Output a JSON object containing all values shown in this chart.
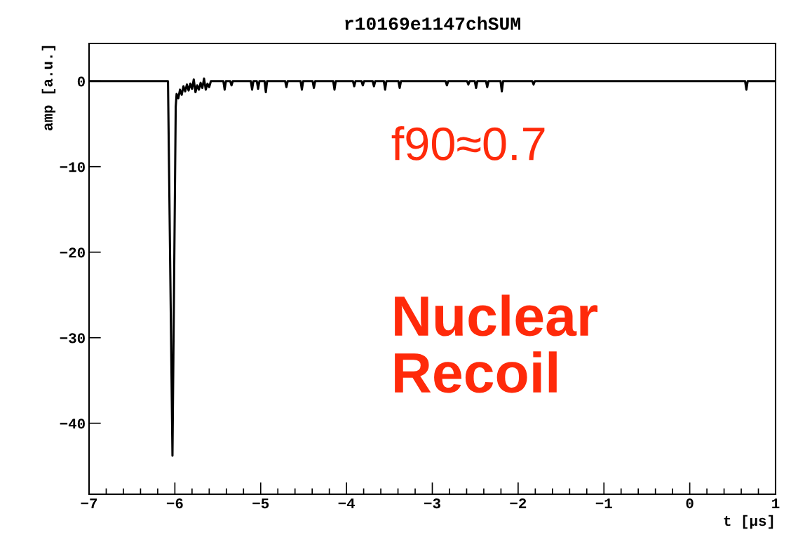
{
  "chart_data": {
    "type": "line",
    "title": "r10169e1147chSUM",
    "xlabel": "t [μs]",
    "ylabel": "amp [a.u.]",
    "x": [
      -7,
      -6.08,
      -6.028,
      -5.99,
      -5.98,
      -5.96,
      -5.94,
      -5.92,
      -5.9,
      -5.88,
      -5.86,
      -5.84,
      -5.82,
      -5.8,
      -5.78,
      -5.76,
      -5.74,
      -5.72,
      -5.7,
      -5.68,
      -5.66,
      -5.64,
      -5.62,
      -5.6,
      -5.58,
      -5.435,
      -5.42,
      -5.405,
      -5.355,
      -5.34,
      -5.325,
      -5.115,
      -5.1,
      -5.085,
      -5.045,
      -5.03,
      -5.015,
      -4.955,
      -4.94,
      -4.925,
      -4.715,
      -4.7,
      -4.685,
      -4.535,
      -4.52,
      -4.505,
      -4.395,
      -4.38,
      -4.365,
      -4.155,
      -4.14,
      -4.125,
      -3.925,
      -3.91,
      -3.895,
      -3.825,
      -3.81,
      -3.795,
      -3.695,
      -3.68,
      -3.665,
      -3.565,
      -3.55,
      -3.535,
      -3.395,
      -3.38,
      -3.365,
      -2.845,
      -2.83,
      -2.815,
      -2.595,
      -2.58,
      -2.565,
      -2.505,
      -2.49,
      -2.475,
      -2.375,
      -2.36,
      -2.345,
      -2.205,
      -2.19,
      -2.175,
      -1.835,
      -1.82,
      -1.805,
      0.645,
      0.66,
      0.675,
      1
    ],
    "series": [
      {
        "color": "#000000",
        "values": [
          0,
          0,
          -43.8,
          -3,
          -1.5,
          -2.0,
          -1.0,
          -1.6,
          -0.6,
          -1.2,
          -0.4,
          -1.1,
          -0.3,
          -0.9,
          0.2,
          -1.3,
          -0.5,
          -1.0,
          -0.2,
          -0.8,
          0.3,
          -1.0,
          -0.3,
          -0.7,
          0,
          0,
          -1.0,
          0,
          0,
          -0.5,
          0,
          0,
          -1.0,
          0,
          0,
          -0.9,
          0,
          0,
          -1.3,
          0,
          0,
          -0.7,
          0,
          0,
          -1.0,
          0,
          0,
          -0.8,
          0,
          0,
          -1.0,
          0,
          0,
          -0.6,
          0,
          0,
          -0.5,
          0,
          0,
          -0.6,
          0,
          0,
          -1.0,
          0,
          0,
          -0.8,
          0,
          0,
          -0.5,
          0,
          0,
          -0.4,
          0,
          0,
          -0.8,
          0,
          0,
          -0.7,
          0,
          0,
          -1.2,
          0,
          0,
          -0.4,
          0,
          0,
          -1.0,
          0,
          0
        ]
      }
    ],
    "xlim": [
      -7,
      1
    ],
    "ylim": [
      -48.3,
      4.4
    ],
    "xticks": [
      {
        "value": -7,
        "label": "−7"
      },
      {
        "value": -6,
        "label": "−6"
      },
      {
        "value": -5,
        "label": "−5"
      },
      {
        "value": -4,
        "label": "−4"
      },
      {
        "value": -3,
        "label": "−3"
      },
      {
        "value": -2,
        "label": "−2"
      },
      {
        "value": -1,
        "label": "−1"
      },
      0,
      1
    ],
    "yticks": [
      0,
      {
        "value": -10,
        "label": "−10"
      },
      {
        "value": -20,
        "label": "−20"
      },
      {
        "value": -30,
        "label": "−30"
      },
      {
        "value": -40,
        "label": "−40"
      }
    ],
    "grid": false,
    "legend": false,
    "marker": "none",
    "line_style": "solid",
    "annotations": [
      "f90≈0.7",
      "Nuclear\nRecoil"
    ]
  }
}
